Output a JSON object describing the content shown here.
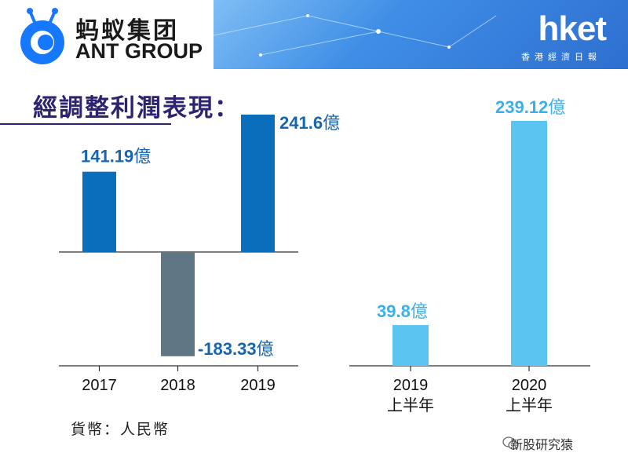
{
  "header": {
    "logo_cn": "蚂蚁集团",
    "logo_en": "ANT GROUP",
    "brand": "hket",
    "brand_sub": "香港經濟日報"
  },
  "title": "經調整利潤表現：",
  "currency_note": "貨幣：人民幣",
  "footer": "新股研究猿",
  "colors": {
    "annual_bar": "#0a6ebd",
    "negative_bar": "#5f7784",
    "halfyear_bar": "#5bc4f1",
    "annual_label": "#1565b0",
    "halfyear_label": "#3ab0e8",
    "title": "#2c2470"
  },
  "chart_data": [
    {
      "type": "bar",
      "categories": [
        "2017",
        "2018",
        "2019"
      ],
      "values": [
        141.19,
        -183.33,
        241.6
      ],
      "data_labels": [
        "141.19",
        "-183.33",
        "241.6"
      ],
      "unit": "億",
      "ylim": [
        -183.33,
        241.6
      ]
    },
    {
      "type": "bar",
      "categories": [
        "2019 上半年",
        "2020 上半年"
      ],
      "category_lines": [
        [
          "2019",
          "上半年"
        ],
        [
          "2020",
          "上半年"
        ]
      ],
      "values": [
        39.8,
        239.12
      ],
      "data_labels": [
        "39.8",
        "239.12"
      ],
      "unit": "億",
      "ylim": [
        0,
        239.12
      ]
    }
  ]
}
